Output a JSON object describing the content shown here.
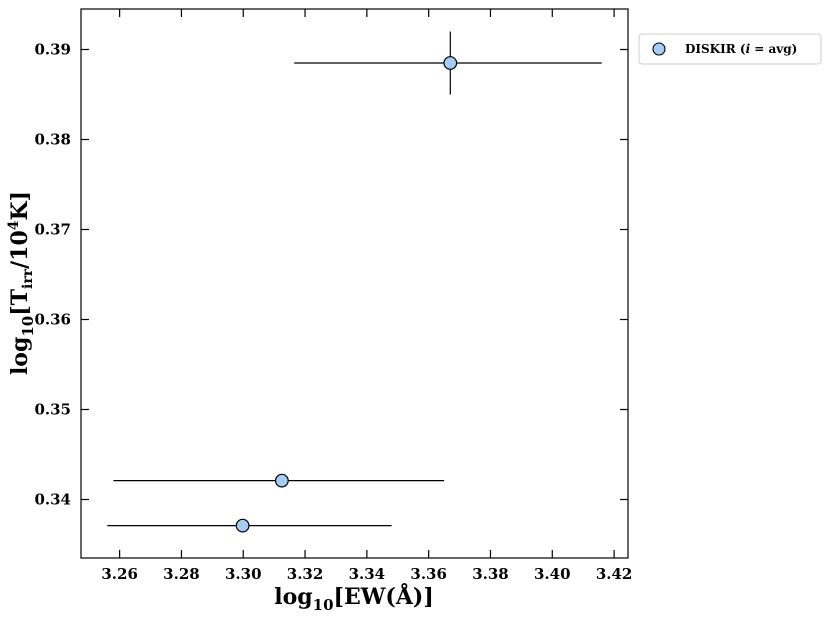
{
  "chart_data": {
    "type": "scatter",
    "xlabel": {
      "prefix": "log",
      "sub": "10",
      "body": "[EW(Å)]"
    },
    "ylabel": {
      "prefix": "log",
      "sub": "10",
      "body1": "[T",
      "sub2": "irr",
      "body2": "/10",
      "sup": "4",
      "body3": "K]"
    },
    "xlim": [
      3.2475,
      3.4245
    ],
    "ylim": [
      0.3335,
      0.3945
    ],
    "xticks": [
      3.26,
      3.28,
      3.3,
      3.32,
      3.34,
      3.36,
      3.38,
      3.4,
      3.42
    ],
    "xtick_labels": [
      "3.26",
      "3.28",
      "3.30",
      "3.32",
      "3.34",
      "3.36",
      "3.38",
      "3.40",
      "3.42"
    ],
    "yticks": [
      0.34,
      0.35,
      0.36,
      0.37,
      0.38,
      0.39
    ],
    "ytick_labels": [
      "0.34",
      "0.35",
      "0.36",
      "0.37",
      "0.38",
      "0.39"
    ],
    "legend_position": "outside-top-right",
    "series": [
      {
        "name": "DISKIR (i = avg)",
        "color": "#a6cdf5",
        "edge_color": "#000000",
        "points": [
          {
            "x": 3.367,
            "y": 0.3885,
            "xerr": [
              0.0505,
              0.049
            ],
            "yerr": [
              0.0035,
              0.0035
            ]
          },
          {
            "x": 3.3125,
            "y": 0.3421,
            "xerr": [
              0.0545,
              0.0525
            ],
            "yerr": [
              0.0,
              0.0
            ]
          },
          {
            "x": 3.2998,
            "y": 0.3371,
            "xerr": [
              0.0438,
              0.0482
            ],
            "yerr": [
              0.0,
              0.0
            ]
          }
        ]
      }
    ],
    "legend": {
      "label_prefix": "DISKIR (",
      "label_italic": "i",
      "label_suffix": " = avg)"
    }
  }
}
